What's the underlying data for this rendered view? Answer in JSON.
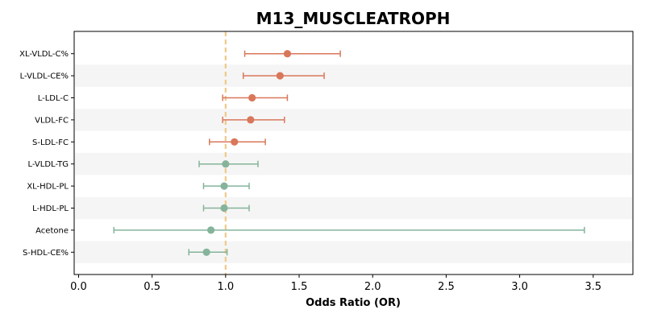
{
  "chart_data": {
    "type": "scatter",
    "subtype": "forest-plot",
    "title": "M13_MUSCLEATROPH",
    "xlabel": "Odds Ratio (OR)",
    "ylabel": "",
    "xlim": [
      -0.03,
      3.77
    ],
    "xticks": [
      "0.0",
      "0.5",
      "1.0",
      "1.5",
      "2.0",
      "2.5",
      "3.0",
      "3.5"
    ],
    "xtick_values": [
      0,
      0.5,
      1.0,
      1.5,
      2.0,
      2.5,
      3.0,
      3.5
    ],
    "reference_line": {
      "x": 1.0,
      "style": "dashed",
      "color": "#f0c98a"
    },
    "alternating_row_shading": true,
    "grid": false,
    "legend": "none",
    "colors": {
      "risk": "#d9775a",
      "protective": "#85b49b",
      "band": "#f5f5f5"
    },
    "rows": [
      {
        "label": "XL-VLDL-C%",
        "or": 1.42,
        "ci_low": 1.13,
        "ci_high": 1.78,
        "group": "risk"
      },
      {
        "label": "L-VLDL-CE%",
        "or": 1.37,
        "ci_low": 1.12,
        "ci_high": 1.67,
        "group": "risk"
      },
      {
        "label": "L-LDL-C",
        "or": 1.18,
        "ci_low": 0.98,
        "ci_high": 1.42,
        "group": "risk"
      },
      {
        "label": "VLDL-FC",
        "or": 1.17,
        "ci_low": 0.98,
        "ci_high": 1.4,
        "group": "risk"
      },
      {
        "label": "S-LDL-FC",
        "or": 1.06,
        "ci_low": 0.89,
        "ci_high": 1.27,
        "group": "risk"
      },
      {
        "label": "L-VLDL-TG",
        "or": 1.0,
        "ci_low": 0.82,
        "ci_high": 1.22,
        "group": "protective"
      },
      {
        "label": "XL-HDL-PL",
        "or": 0.99,
        "ci_low": 0.85,
        "ci_high": 1.16,
        "group": "protective"
      },
      {
        "label": "L-HDL-PL",
        "or": 0.99,
        "ci_low": 0.85,
        "ci_high": 1.16,
        "group": "protective"
      },
      {
        "label": "Acetone",
        "or": 0.9,
        "ci_low": 0.24,
        "ci_high": 3.44,
        "group": "protective"
      },
      {
        "label": "S-HDL-CE%",
        "or": 0.87,
        "ci_low": 0.75,
        "ci_high": 1.01,
        "group": "protective"
      }
    ]
  }
}
